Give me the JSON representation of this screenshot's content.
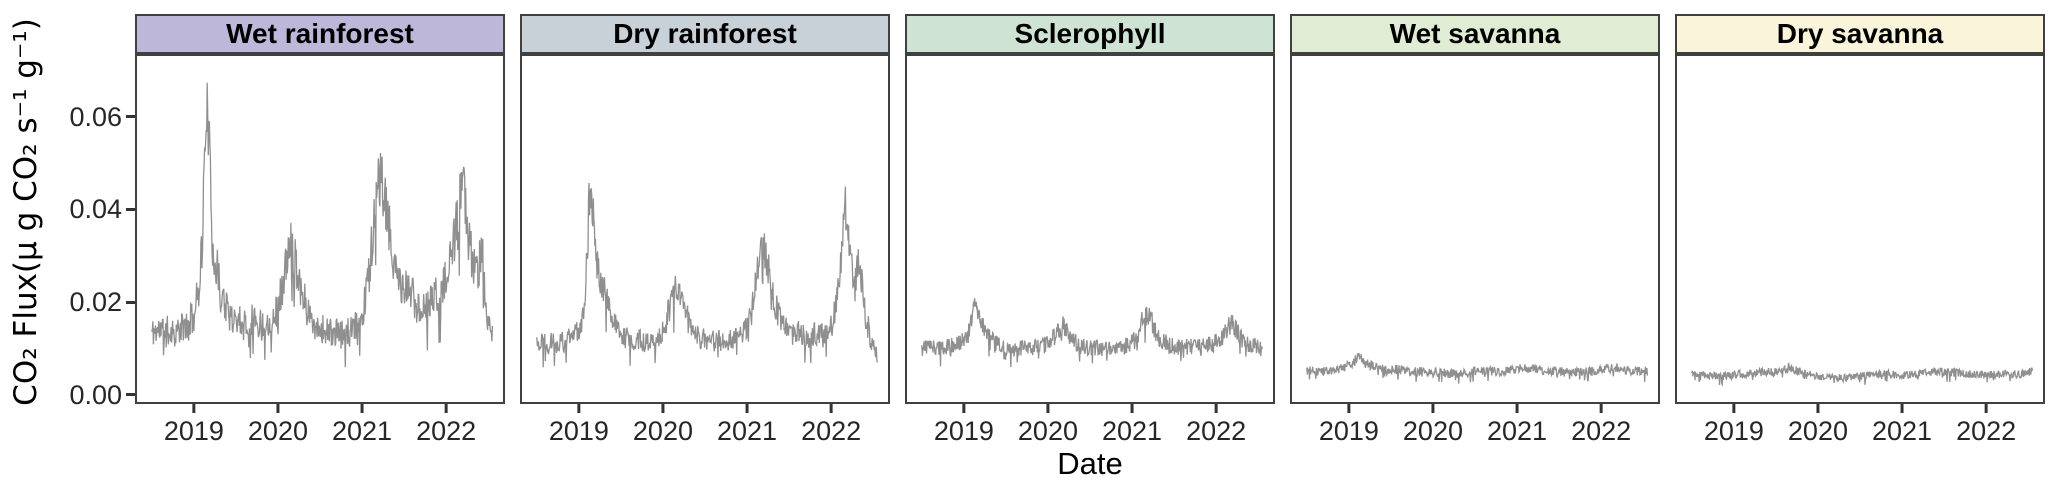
{
  "figure": {
    "x_axis_title": "Date",
    "y_axis_title": "CO₂ Flux(μ g CO₂ s⁻¹ g⁻¹)"
  },
  "chart_data": {
    "type": "line",
    "title": "",
    "xlabel": "Date",
    "ylabel": "CO₂ Flux(μ g CO₂ s⁻¹ g⁻¹)",
    "grid": "off",
    "legend": "none",
    "x_domain": [
      2018.3,
      2022.7
    ],
    "y_domain": [
      -0.002,
      0.0735
    ],
    "x_ticks": [
      {
        "label": "2019",
        "value": 2019
      },
      {
        "label": "2020",
        "value": 2020
      },
      {
        "label": "2021",
        "value": 2021
      },
      {
        "label": "2022",
        "value": 2022
      }
    ],
    "y_ticks": [
      {
        "label": "0.00",
        "value": 0.0
      },
      {
        "label": "0.02",
        "value": 0.02
      },
      {
        "label": "0.04",
        "value": 0.04
      },
      {
        "label": "0.06",
        "value": 0.06
      }
    ],
    "line_color": "#8f8f8f",
    "panel_border_color": "#404040",
    "tick_color": "#333333",
    "facets": [
      {
        "label": "Wet rainforest",
        "strip_color": "#bdb8d9",
        "seed": 11,
        "noise": 0.0025,
        "points": [
          [
            2018.5,
            0.0135
          ],
          [
            2018.6,
            0.014
          ],
          [
            2018.7,
            0.0138
          ],
          [
            2018.8,
            0.0135
          ],
          [
            2018.9,
            0.015
          ],
          [
            2019.0,
            0.017
          ],
          [
            2019.05,
            0.022
          ],
          [
            2019.1,
            0.033
          ],
          [
            2019.15,
            0.064
          ],
          [
            2019.18,
            0.055
          ],
          [
            2019.22,
            0.033
          ],
          [
            2019.3,
            0.024
          ],
          [
            2019.4,
            0.018
          ],
          [
            2019.5,
            0.0165
          ],
          [
            2019.6,
            0.016
          ],
          [
            2019.7,
            0.0165
          ],
          [
            2019.8,
            0.015
          ],
          [
            2019.9,
            0.0155
          ],
          [
            2020.0,
            0.0185
          ],
          [
            2020.08,
            0.026
          ],
          [
            2020.15,
            0.032
          ],
          [
            2020.2,
            0.03
          ],
          [
            2020.3,
            0.021
          ],
          [
            2020.4,
            0.016
          ],
          [
            2020.5,
            0.0145
          ],
          [
            2020.6,
            0.0135
          ],
          [
            2020.7,
            0.0132
          ],
          [
            2020.8,
            0.013
          ],
          [
            2020.9,
            0.014
          ],
          [
            2021.0,
            0.0165
          ],
          [
            2021.08,
            0.026
          ],
          [
            2021.15,
            0.039
          ],
          [
            2021.22,
            0.048
          ],
          [
            2021.3,
            0.038
          ],
          [
            2021.4,
            0.026
          ],
          [
            2021.5,
            0.022
          ],
          [
            2021.57,
            0.023
          ],
          [
            2021.65,
            0.0195
          ],
          [
            2021.75,
            0.0185
          ],
          [
            2021.85,
            0.021
          ],
          [
            2021.95,
            0.022
          ],
          [
            2022.05,
            0.028
          ],
          [
            2022.12,
            0.036
          ],
          [
            2022.2,
            0.045
          ],
          [
            2022.28,
            0.033
          ],
          [
            2022.35,
            0.025
          ],
          [
            2022.43,
            0.031
          ],
          [
            2022.5,
            0.015
          ],
          [
            2022.55,
            0.012
          ]
        ]
      },
      {
        "label": "Dry rainforest",
        "strip_color": "#c8d0d8",
        "seed": 22,
        "noise": 0.002,
        "points": [
          [
            2018.5,
            0.0118
          ],
          [
            2018.65,
            0.0115
          ],
          [
            2018.8,
            0.0112
          ],
          [
            2018.9,
            0.012
          ],
          [
            2019.0,
            0.014
          ],
          [
            2019.07,
            0.021
          ],
          [
            2019.13,
            0.044
          ],
          [
            2019.17,
            0.038
          ],
          [
            2019.22,
            0.028
          ],
          [
            2019.3,
            0.023
          ],
          [
            2019.4,
            0.016
          ],
          [
            2019.5,
            0.0125
          ],
          [
            2019.65,
            0.0118
          ],
          [
            2019.8,
            0.0115
          ],
          [
            2019.9,
            0.012
          ],
          [
            2020.0,
            0.0135
          ],
          [
            2020.08,
            0.0185
          ],
          [
            2020.15,
            0.023
          ],
          [
            2020.22,
            0.021
          ],
          [
            2020.3,
            0.016
          ],
          [
            2020.4,
            0.0125
          ],
          [
            2020.55,
            0.0115
          ],
          [
            2020.7,
            0.0118
          ],
          [
            2020.85,
            0.012
          ],
          [
            2020.95,
            0.013
          ],
          [
            2021.05,
            0.017
          ],
          [
            2021.12,
            0.026
          ],
          [
            2021.18,
            0.033
          ],
          [
            2021.25,
            0.028
          ],
          [
            2021.33,
            0.02
          ],
          [
            2021.42,
            0.015
          ],
          [
            2021.52,
            0.013
          ],
          [
            2021.62,
            0.0135
          ],
          [
            2021.72,
            0.0128
          ],
          [
            2021.82,
            0.013
          ],
          [
            2021.92,
            0.0135
          ],
          [
            2022.02,
            0.015
          ],
          [
            2022.1,
            0.026
          ],
          [
            2022.17,
            0.04
          ],
          [
            2022.23,
            0.03
          ],
          [
            2022.28,
            0.022
          ],
          [
            2022.33,
            0.031
          ],
          [
            2022.4,
            0.018
          ],
          [
            2022.48,
            0.011
          ],
          [
            2022.55,
            0.0085
          ]
        ]
      },
      {
        "label": "Sclerophyll",
        "strip_color": "#cfe3d4",
        "seed": 33,
        "noise": 0.0016,
        "points": [
          [
            2018.5,
            0.0105
          ],
          [
            2018.7,
            0.0102
          ],
          [
            2018.9,
            0.0105
          ],
          [
            2019.05,
            0.013
          ],
          [
            2019.13,
            0.02
          ],
          [
            2019.2,
            0.016
          ],
          [
            2019.3,
            0.0125
          ],
          [
            2019.45,
            0.01
          ],
          [
            2019.6,
            0.0098
          ],
          [
            2019.8,
            0.01
          ],
          [
            2019.95,
            0.0105
          ],
          [
            2020.08,
            0.0125
          ],
          [
            2020.17,
            0.015
          ],
          [
            2020.25,
            0.013
          ],
          [
            2020.35,
            0.0108
          ],
          [
            2020.5,
            0.01
          ],
          [
            2020.7,
            0.01
          ],
          [
            2020.9,
            0.0102
          ],
          [
            2021.05,
            0.012
          ],
          [
            2021.13,
            0.0165
          ],
          [
            2021.2,
            0.0175
          ],
          [
            2021.3,
            0.0125
          ],
          [
            2021.45,
            0.0105
          ],
          [
            2021.6,
            0.0102
          ],
          [
            2021.8,
            0.0105
          ],
          [
            2021.95,
            0.0108
          ],
          [
            2022.1,
            0.013
          ],
          [
            2022.18,
            0.0155
          ],
          [
            2022.28,
            0.0125
          ],
          [
            2022.4,
            0.0108
          ],
          [
            2022.55,
            0.01
          ]
        ]
      },
      {
        "label": "Wet savanna",
        "strip_color": "#e0ecd4",
        "seed": 44,
        "noise": 0.0012,
        "points": [
          [
            2018.5,
            0.0052
          ],
          [
            2018.7,
            0.005
          ],
          [
            2018.9,
            0.0055
          ],
          [
            2019.05,
            0.007
          ],
          [
            2019.12,
            0.008
          ],
          [
            2019.2,
            0.0072
          ],
          [
            2019.3,
            0.006
          ],
          [
            2019.45,
            0.0052
          ],
          [
            2019.6,
            0.0055
          ],
          [
            2019.8,
            0.005
          ],
          [
            2020.0,
            0.005
          ],
          [
            2020.2,
            0.0045
          ],
          [
            2020.4,
            0.0048
          ],
          [
            2020.6,
            0.0052
          ],
          [
            2020.8,
            0.005
          ],
          [
            2021.0,
            0.0055
          ],
          [
            2021.15,
            0.0058
          ],
          [
            2021.3,
            0.0052
          ],
          [
            2021.5,
            0.005
          ],
          [
            2021.7,
            0.0048
          ],
          [
            2021.9,
            0.005
          ],
          [
            2022.05,
            0.0055
          ],
          [
            2022.2,
            0.0058
          ],
          [
            2022.35,
            0.0052
          ],
          [
            2022.55,
            0.005
          ]
        ]
      },
      {
        "label": "Dry savanna",
        "strip_color": "#faf5da",
        "seed": 55,
        "noise": 0.0011,
        "points": [
          [
            2018.5,
            0.0048
          ],
          [
            2018.7,
            0.0042
          ],
          [
            2018.9,
            0.004
          ],
          [
            2019.1,
            0.0045
          ],
          [
            2019.3,
            0.0048
          ],
          [
            2019.5,
            0.005
          ],
          [
            2019.65,
            0.0058
          ],
          [
            2019.8,
            0.0048
          ],
          [
            2020.0,
            0.004
          ],
          [
            2020.2,
            0.0036
          ],
          [
            2020.4,
            0.0038
          ],
          [
            2020.6,
            0.0042
          ],
          [
            2020.8,
            0.0045
          ],
          [
            2021.0,
            0.0042
          ],
          [
            2021.2,
            0.0045
          ],
          [
            2021.4,
            0.005
          ],
          [
            2021.6,
            0.0048
          ],
          [
            2021.8,
            0.0045
          ],
          [
            2022.0,
            0.0042
          ],
          [
            2022.2,
            0.0045
          ],
          [
            2022.4,
            0.0045
          ],
          [
            2022.55,
            0.005
          ]
        ]
      }
    ]
  }
}
